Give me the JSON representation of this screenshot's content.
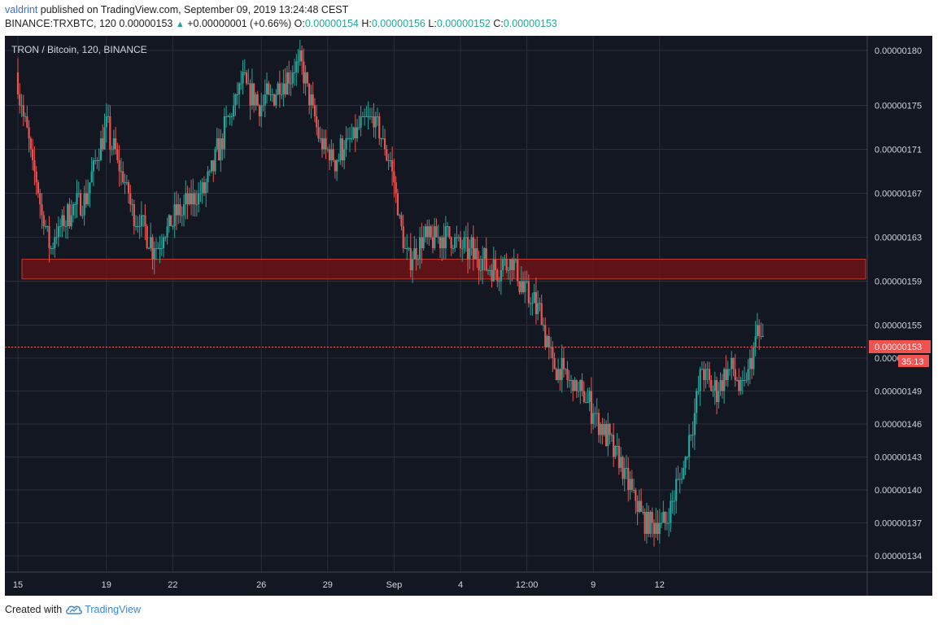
{
  "header": {
    "user": "valdrint",
    "published_text": "published on TradingView.com, September 09, 2019 13:24:48 CEST",
    "symbol": "BINANCE:TRXBTC, 120",
    "last": "0.00000153",
    "change": "+0.00000001 (+0.66%)",
    "o_label": "O:",
    "o_value": "0.00000154",
    "h_label": "H:",
    "h_value": "0.00000156",
    "l_label": "L:",
    "l_value": "0.00000152",
    "c_label": "C:",
    "c_value": "0.00000153"
  },
  "footer": {
    "created_with": "Created with",
    "brand": "TradingView"
  },
  "chart_data": {
    "type": "candlestick",
    "title": "TRON / Bitcoin, 120, BINANCE",
    "yticks": [
      1.8e-06,
      1.75e-06,
      1.71e-06,
      1.67e-06,
      1.63e-06,
      1.59e-06,
      1.55e-06,
      1.52e-06,
      1.49e-06,
      1.46e-06,
      1.43e-06,
      1.4e-06,
      1.37e-06,
      1.34e-06
    ],
    "ytick_labels": [
      "0.00000180",
      "0.00000175",
      "0.00000171",
      "0.00000167",
      "0.00000163",
      "0.00000159",
      "0.00000155",
      "0.00000152",
      "0.00000149",
      "0.00000146",
      "0.00000143",
      "0.00000140",
      "0.00000137",
      "0.00000134"
    ],
    "x_labels": [
      "15",
      "19",
      "22",
      "26",
      "29",
      "Sep",
      "4",
      "12:00",
      "9",
      "12"
    ],
    "last_price": 1.53e-06,
    "last_price_label": "0.00000153",
    "countdown": "35:13",
    "support_zone": [
      1.592e-06,
      1.61e-06
    ],
    "colors": {
      "up": "#26a69a",
      "down": "#ef5350",
      "background": "#131722",
      "grid": "#2a2e39",
      "zone": "#8b1a1a"
    },
    "path_points": [
      [
        0,
        1.78e-06
      ],
      [
        0.6,
        1.71e-06
      ],
      [
        1.5,
        1.62e-06
      ],
      [
        2.3,
        1.65e-06
      ],
      [
        3.2,
        1.67e-06
      ],
      [
        4.1,
        1.73e-06
      ],
      [
        5.2,
        1.66e-06
      ],
      [
        6.2,
        1.62e-06
      ],
      [
        7.2,
        1.65e-06
      ],
      [
        8.5,
        1.67e-06
      ],
      [
        9.3,
        1.72e-06
      ],
      [
        10.2,
        1.77e-06
      ],
      [
        11.0,
        1.75e-06
      ],
      [
        12.1,
        1.77e-06
      ],
      [
        12.9,
        1.79e-06
      ],
      [
        13.7,
        1.72e-06
      ],
      [
        14.3,
        1.7e-06
      ],
      [
        15.2,
        1.72e-06
      ],
      [
        16.1,
        1.74e-06
      ],
      [
        16.9,
        1.7e-06
      ],
      [
        17.3,
        1.65e-06
      ],
      [
        17.7,
        1.61e-06
      ],
      [
        18.5,
        1.63e-06
      ],
      [
        19.6,
        1.63e-06
      ],
      [
        20.4,
        1.62e-06
      ],
      [
        21.6,
        1.6e-06
      ],
      [
        22.3,
        1.61e-06
      ],
      [
        23.0,
        1.58e-06
      ],
      [
        23.7,
        1.56e-06
      ],
      [
        24.3,
        1.51e-06
      ],
      [
        25.0,
        1.5e-06
      ],
      [
        25.8,
        1.48e-06
      ],
      [
        26.4,
        1.46e-06
      ],
      [
        27.2,
        1.43e-06
      ],
      [
        27.8,
        1.4e-06
      ],
      [
        28.5,
        1.37e-06
      ],
      [
        29.3,
        1.37e-06
      ],
      [
        30.0,
        1.41e-06
      ],
      [
        30.6,
        1.46e-06
      ],
      [
        31.0,
        1.51e-06
      ],
      [
        31.6,
        1.49e-06
      ],
      [
        32.3,
        1.51e-06
      ],
      [
        32.8,
        1.49e-06
      ],
      [
        33.3,
        1.52e-06
      ],
      [
        33.5,
        1.55e-06
      ],
      [
        33.7,
        1.53e-06
      ]
    ]
  }
}
